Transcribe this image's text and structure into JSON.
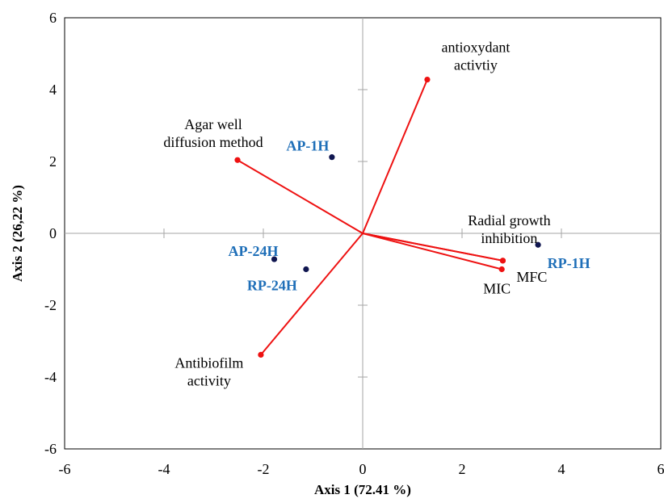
{
  "chart_data": {
    "type": "scatter",
    "subtype": "biplot",
    "xlabel": "Axis 1 (72.41 %)",
    "ylabel": "Axis 2  (26,22 %)",
    "xlim": [
      -6,
      6
    ],
    "ylim": [
      -6,
      6
    ],
    "xticks": [
      -6,
      -4,
      -2,
      0,
      2,
      4,
      6
    ],
    "yticks": [
      -6,
      -4,
      -2,
      0,
      2,
      4,
      6
    ],
    "grid": false,
    "variable_color": "#ee1111",
    "observation_color": "#101650",
    "observation_label_color": "#1f6fb8",
    "variables": [
      {
        "label_lines": [
          "antioxydant",
          "activtiy"
        ],
        "x": 1.3,
        "y": 4.28
      },
      {
        "label_lines": [
          "Agar well",
          "diffusion method"
        ],
        "x": -2.52,
        "y": 2.04
      },
      {
        "label_lines": [
          "Radial growth",
          "inhibition"
        ],
        "x": 2.82,
        "y": -0.76
      },
      {
        "label_lines": [
          "MFC"
        ],
        "x": 2.82,
        "y": -0.76
      },
      {
        "label_lines": [
          "MIC"
        ],
        "x": 2.8,
        "y": -1.0
      },
      {
        "label_lines": [
          "Antibiofilm",
          "activity"
        ],
        "x": -2.05,
        "y": -3.38
      }
    ],
    "observations": [
      {
        "label": "AP-1H",
        "x": -0.62,
        "y": 2.12
      },
      {
        "label": "RP-1H",
        "x": 3.53,
        "y": -0.32
      },
      {
        "label": "AP-24H",
        "x": -1.78,
        "y": -0.72
      },
      {
        "label": "RP-24H",
        "x": -1.14,
        "y": -1.0
      }
    ]
  }
}
